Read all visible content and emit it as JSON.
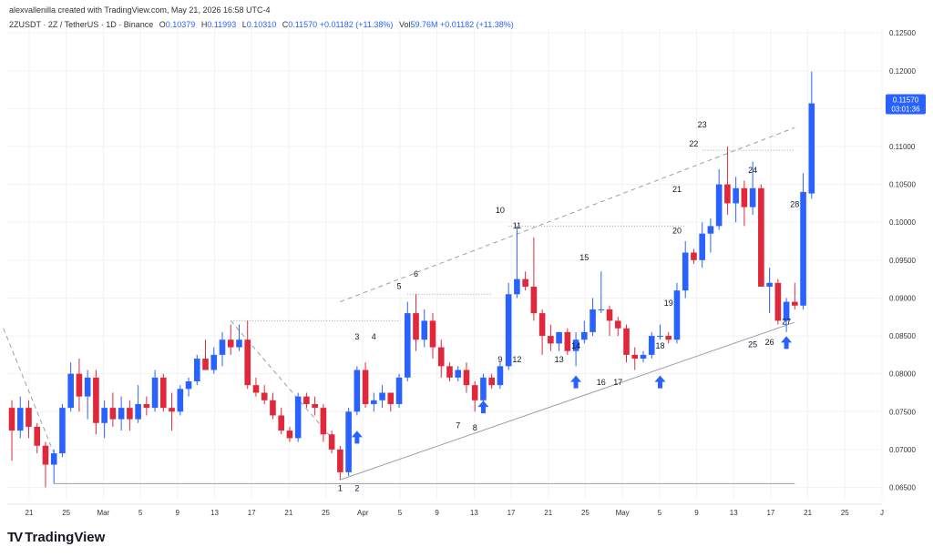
{
  "header": {
    "credit": "alexvallenilla created with TradingView.com, May 21, 2026 16:58 UTC-4",
    "symbol": "2ZUSDT · 2Z / TetherUS · 1D · Binance",
    "o_label": "O",
    "o_value": "0.10379",
    "h_label": "H",
    "h_value": "0.11993",
    "l_label": "L",
    "l_value": "0.10310",
    "c_label": "C",
    "c_value": "0.11570",
    "change": "+0.01182 (+11.38%)",
    "vol_label": "Vol",
    "vol_value": "59.76M",
    "vol_change": "+0.01182 (+11.38%)"
  },
  "price_tag": {
    "price": "0.11570",
    "countdown": "03:01:36"
  },
  "footer": {
    "brand": "TradingView"
  },
  "colors": {
    "up": "#2962ff",
    "down": "#e0283a",
    "grid": "#f1f3f6",
    "text": "#333333",
    "trendline": "#9aa0a6"
  },
  "chart_data": {
    "type": "candlestick",
    "ylim": [
      0.0635,
      0.1255
    ],
    "yticks": [
      0.065,
      0.07,
      0.075,
      0.08,
      0.085,
      0.09,
      0.095,
      0.1,
      0.105,
      0.11,
      0.115,
      0.12,
      0.125
    ],
    "ytick_labels": [
      "0.06500",
      "0.07000",
      "0.07500",
      "0.08000",
      "0.08500",
      "0.09000",
      "0.09500",
      "0.10000",
      "0.10500",
      "0.11000",
      "0.11500",
      "0.12000",
      "0.12500"
    ],
    "x_labels": [
      "21",
      "25",
      "Mar",
      "5",
      "9",
      "13",
      "17",
      "21",
      "25",
      "Apr",
      "5",
      "9",
      "13",
      "17",
      "21",
      "25",
      "May",
      "5",
      "9",
      "13",
      "17",
      "21",
      "25",
      "J"
    ],
    "candles": [
      {
        "o": 0.0755,
        "h": 0.0765,
        "l": 0.0685,
        "c": 0.0725
      },
      {
        "o": 0.0725,
        "h": 0.077,
        "l": 0.0715,
        "c": 0.0755
      },
      {
        "o": 0.0755,
        "h": 0.0765,
        "l": 0.0715,
        "c": 0.073
      },
      {
        "o": 0.073,
        "h": 0.0735,
        "l": 0.0695,
        "c": 0.0705
      },
      {
        "o": 0.0705,
        "h": 0.071,
        "l": 0.065,
        "c": 0.068
      },
      {
        "o": 0.068,
        "h": 0.07,
        "l": 0.0655,
        "c": 0.0695
      },
      {
        "o": 0.0695,
        "h": 0.076,
        "l": 0.069,
        "c": 0.0755
      },
      {
        "o": 0.0755,
        "h": 0.0815,
        "l": 0.075,
        "c": 0.08
      },
      {
        "o": 0.08,
        "h": 0.082,
        "l": 0.075,
        "c": 0.077
      },
      {
        "o": 0.077,
        "h": 0.0805,
        "l": 0.074,
        "c": 0.0795
      },
      {
        "o": 0.0795,
        "h": 0.0805,
        "l": 0.072,
        "c": 0.0735
      },
      {
        "o": 0.0735,
        "h": 0.0765,
        "l": 0.0715,
        "c": 0.0755
      },
      {
        "o": 0.0755,
        "h": 0.0775,
        "l": 0.073,
        "c": 0.074
      },
      {
        "o": 0.074,
        "h": 0.077,
        "l": 0.0725,
        "c": 0.0755
      },
      {
        "o": 0.0755,
        "h": 0.0765,
        "l": 0.0725,
        "c": 0.074
      },
      {
        "o": 0.074,
        "h": 0.0785,
        "l": 0.0735,
        "c": 0.076
      },
      {
        "o": 0.076,
        "h": 0.077,
        "l": 0.0745,
        "c": 0.0755
      },
      {
        "o": 0.0755,
        "h": 0.0805,
        "l": 0.075,
        "c": 0.0795
      },
      {
        "o": 0.0795,
        "h": 0.08,
        "l": 0.075,
        "c": 0.0755
      },
      {
        "o": 0.0755,
        "h": 0.0775,
        "l": 0.0725,
        "c": 0.075
      },
      {
        "o": 0.075,
        "h": 0.0785,
        "l": 0.0745,
        "c": 0.078
      },
      {
        "o": 0.078,
        "h": 0.0795,
        "l": 0.077,
        "c": 0.079
      },
      {
        "o": 0.079,
        "h": 0.0825,
        "l": 0.0785,
        "c": 0.082
      },
      {
        "o": 0.082,
        "h": 0.0845,
        "l": 0.0805,
        "c": 0.0805
      },
      {
        "o": 0.0805,
        "h": 0.0835,
        "l": 0.08,
        "c": 0.0825
      },
      {
        "o": 0.0825,
        "h": 0.0855,
        "l": 0.081,
        "c": 0.0845
      },
      {
        "o": 0.0845,
        "h": 0.0865,
        "l": 0.0825,
        "c": 0.0835
      },
      {
        "o": 0.0835,
        "h": 0.0865,
        "l": 0.083,
        "c": 0.0845
      },
      {
        "o": 0.0845,
        "h": 0.087,
        "l": 0.078,
        "c": 0.0785
      },
      {
        "o": 0.0785,
        "h": 0.0795,
        "l": 0.077,
        "c": 0.0775
      },
      {
        "o": 0.0775,
        "h": 0.0785,
        "l": 0.076,
        "c": 0.0765
      },
      {
        "o": 0.0765,
        "h": 0.0775,
        "l": 0.074,
        "c": 0.0745
      },
      {
        "o": 0.0745,
        "h": 0.0755,
        "l": 0.072,
        "c": 0.0725
      },
      {
        "o": 0.0725,
        "h": 0.073,
        "l": 0.071,
        "c": 0.0715
      },
      {
        "o": 0.0715,
        "h": 0.0775,
        "l": 0.071,
        "c": 0.077
      },
      {
        "o": 0.077,
        "h": 0.0775,
        "l": 0.0755,
        "c": 0.076
      },
      {
        "o": 0.076,
        "h": 0.077,
        "l": 0.0745,
        "c": 0.0755
      },
      {
        "o": 0.0755,
        "h": 0.076,
        "l": 0.071,
        "c": 0.072
      },
      {
        "o": 0.072,
        "h": 0.0725,
        "l": 0.0695,
        "c": 0.07
      },
      {
        "o": 0.07,
        "h": 0.0705,
        "l": 0.066,
        "c": 0.067
      },
      {
        "o": 0.067,
        "h": 0.0755,
        "l": 0.0665,
        "c": 0.075
      },
      {
        "o": 0.075,
        "h": 0.081,
        "l": 0.0745,
        "c": 0.0805
      },
      {
        "o": 0.0805,
        "h": 0.0815,
        "l": 0.0755,
        "c": 0.076
      },
      {
        "o": 0.076,
        "h": 0.0775,
        "l": 0.075,
        "c": 0.0765
      },
      {
        "o": 0.0765,
        "h": 0.0785,
        "l": 0.0755,
        "c": 0.0775
      },
      {
        "o": 0.0775,
        "h": 0.0775,
        "l": 0.075,
        "c": 0.076
      },
      {
        "o": 0.076,
        "h": 0.08,
        "l": 0.0755,
        "c": 0.0795
      },
      {
        "o": 0.0795,
        "h": 0.0895,
        "l": 0.079,
        "c": 0.088
      },
      {
        "o": 0.088,
        "h": 0.0905,
        "l": 0.083,
        "c": 0.0845
      },
      {
        "o": 0.0845,
        "h": 0.0885,
        "l": 0.0835,
        "c": 0.087
      },
      {
        "o": 0.087,
        "h": 0.088,
        "l": 0.082,
        "c": 0.0835
      },
      {
        "o": 0.0835,
        "h": 0.0845,
        "l": 0.0795,
        "c": 0.081
      },
      {
        "o": 0.081,
        "h": 0.0815,
        "l": 0.079,
        "c": 0.0795
      },
      {
        "o": 0.0795,
        "h": 0.081,
        "l": 0.079,
        "c": 0.0805
      },
      {
        "o": 0.0805,
        "h": 0.0815,
        "l": 0.0775,
        "c": 0.0785
      },
      {
        "o": 0.0785,
        "h": 0.079,
        "l": 0.075,
        "c": 0.0765
      },
      {
        "o": 0.0765,
        "h": 0.08,
        "l": 0.076,
        "c": 0.0795
      },
      {
        "o": 0.0795,
        "h": 0.08,
        "l": 0.078,
        "c": 0.0785
      },
      {
        "o": 0.0785,
        "h": 0.0815,
        "l": 0.078,
        "c": 0.081
      },
      {
        "o": 0.081,
        "h": 0.092,
        "l": 0.0805,
        "c": 0.0905
      },
      {
        "o": 0.0905,
        "h": 0.0995,
        "l": 0.09,
        "c": 0.0925
      },
      {
        "o": 0.0925,
        "h": 0.0935,
        "l": 0.091,
        "c": 0.0915
      },
      {
        "o": 0.0915,
        "h": 0.098,
        "l": 0.087,
        "c": 0.088
      },
      {
        "o": 0.088,
        "h": 0.0885,
        "l": 0.0825,
        "c": 0.085
      },
      {
        "o": 0.085,
        "h": 0.0865,
        "l": 0.083,
        "c": 0.084
      },
      {
        "o": 0.084,
        "h": 0.0855,
        "l": 0.083,
        "c": 0.0855
      },
      {
        "o": 0.0855,
        "h": 0.086,
        "l": 0.0825,
        "c": 0.083
      },
      {
        "o": 0.083,
        "h": 0.0855,
        "l": 0.081,
        "c": 0.0845
      },
      {
        "o": 0.0845,
        "h": 0.087,
        "l": 0.084,
        "c": 0.0855
      },
      {
        "o": 0.0855,
        "h": 0.09,
        "l": 0.085,
        "c": 0.0885
      },
      {
        "o": 0.0885,
        "h": 0.0935,
        "l": 0.088,
        "c": 0.0885
      },
      {
        "o": 0.0885,
        "h": 0.089,
        "l": 0.085,
        "c": 0.087
      },
      {
        "o": 0.087,
        "h": 0.0875,
        "l": 0.085,
        "c": 0.086
      },
      {
        "o": 0.086,
        "h": 0.0865,
        "l": 0.0815,
        "c": 0.0825
      },
      {
        "o": 0.0825,
        "h": 0.0835,
        "l": 0.0805,
        "c": 0.082
      },
      {
        "o": 0.082,
        "h": 0.083,
        "l": 0.0815,
        "c": 0.0825
      },
      {
        "o": 0.0825,
        "h": 0.0855,
        "l": 0.082,
        "c": 0.085
      },
      {
        "o": 0.085,
        "h": 0.0865,
        "l": 0.0845,
        "c": 0.085
      },
      {
        "o": 0.085,
        "h": 0.0855,
        "l": 0.084,
        "c": 0.0845
      },
      {
        "o": 0.0845,
        "h": 0.092,
        "l": 0.084,
        "c": 0.091
      },
      {
        "o": 0.091,
        "h": 0.0975,
        "l": 0.09,
        "c": 0.096
      },
      {
        "o": 0.096,
        "h": 0.0965,
        "l": 0.0945,
        "c": 0.095
      },
      {
        "o": 0.095,
        "h": 0.1,
        "l": 0.094,
        "c": 0.0985
      },
      {
        "o": 0.0985,
        "h": 0.1005,
        "l": 0.096,
        "c": 0.0995
      },
      {
        "o": 0.0995,
        "h": 0.107,
        "l": 0.099,
        "c": 0.105
      },
      {
        "o": 0.105,
        "h": 0.11,
        "l": 0.101,
        "c": 0.1025
      },
      {
        "o": 0.1025,
        "h": 0.106,
        "l": 0.1,
        "c": 0.1045
      },
      {
        "o": 0.1045,
        "h": 0.1055,
        "l": 0.0995,
        "c": 0.102
      },
      {
        "o": 0.102,
        "h": 0.108,
        "l": 0.101,
        "c": 0.1045
      },
      {
        "o": 0.1045,
        "h": 0.105,
        "l": 0.092,
        "c": 0.0915
      },
      {
        "o": 0.0915,
        "h": 0.094,
        "l": 0.088,
        "c": 0.092
      },
      {
        "o": 0.092,
        "h": 0.0925,
        "l": 0.0865,
        "c": 0.087
      },
      {
        "o": 0.087,
        "h": 0.09,
        "l": 0.0855,
        "c": 0.0895
      },
      {
        "o": 0.0895,
        "h": 0.092,
        "l": 0.0885,
        "c": 0.089
      },
      {
        "o": 0.089,
        "h": 0.1065,
        "l": 0.0885,
        "c": 0.104
      },
      {
        "o": 0.1038,
        "h": 0.1199,
        "l": 0.1031,
        "c": 0.1157
      }
    ],
    "wave_labels": [
      {
        "text": "1",
        "i": 39,
        "price": 0.0645
      },
      {
        "text": "2",
        "i": 41,
        "price": 0.0645
      },
      {
        "text": "3",
        "i": 41,
        "price": 0.0845
      },
      {
        "text": "4",
        "i": 43,
        "price": 0.0845
      },
      {
        "text": "5",
        "i": 46,
        "price": 0.0912
      },
      {
        "text": "6",
        "i": 48,
        "price": 0.0928
      },
      {
        "text": "7",
        "i": 53,
        "price": 0.0728
      },
      {
        "text": "8",
        "i": 55,
        "price": 0.0725
      },
      {
        "text": "9",
        "i": 58,
        "price": 0.0815
      },
      {
        "text": "10",
        "i": 58,
        "price": 0.1012
      },
      {
        "text": "11",
        "i": 60,
        "price": 0.0992
      },
      {
        "text": "12",
        "i": 60,
        "price": 0.0815
      },
      {
        "text": "13",
        "i": 65,
        "price": 0.0815
      },
      {
        "text": "14",
        "i": 67,
        "price": 0.0833
      },
      {
        "text": "15",
        "i": 68,
        "price": 0.095
      },
      {
        "text": "16",
        "i": 70,
        "price": 0.0785
      },
      {
        "text": "17",
        "i": 72,
        "price": 0.0785
      },
      {
        "text": "18",
        "i": 77,
        "price": 0.0833
      },
      {
        "text": "19",
        "i": 78,
        "price": 0.089
      },
      {
        "text": "20",
        "i": 79,
        "price": 0.0985
      },
      {
        "text": "21",
        "i": 79,
        "price": 0.104
      },
      {
        "text": "22",
        "i": 81,
        "price": 0.11
      },
      {
        "text": "23",
        "i": 82,
        "price": 0.1125
      },
      {
        "text": "24",
        "i": 88,
        "price": 0.1065
      },
      {
        "text": "25",
        "i": 88,
        "price": 0.0835
      },
      {
        "text": "26",
        "i": 90,
        "price": 0.0838
      },
      {
        "text": "27",
        "i": 92,
        "price": 0.0865
      },
      {
        "text": "28",
        "i": 93,
        "price": 0.102
      }
    ],
    "arrows": [
      {
        "i": 41,
        "price": 0.0715
      },
      {
        "i": 56,
        "price": 0.0755
      },
      {
        "i": 67,
        "price": 0.0788
      },
      {
        "i": 77,
        "price": 0.0788
      },
      {
        "i": 92,
        "price": 0.084
      }
    ],
    "lines": [
      {
        "style": "solid",
        "i1": 5,
        "p1": 0.0655,
        "i2": 93,
        "p2": 0.0655
      },
      {
        "style": "solid",
        "i1": 39,
        "p1": 0.066,
        "i2": 93,
        "p2": 0.0868
      },
      {
        "style": "dashed",
        "i1": 39,
        "p1": 0.0895,
        "i2": 93,
        "p2": 0.1125
      },
      {
        "style": "dotted",
        "i1": 26,
        "p1": 0.087,
        "i2": 46,
        "p2": 0.087
      },
      {
        "style": "dotted",
        "i1": 47,
        "p1": 0.0905,
        "i2": 57,
        "p2": 0.0905
      },
      {
        "style": "dotted",
        "i1": 59,
        "p1": 0.0995,
        "i2": 80,
        "p2": 0.0995
      },
      {
        "style": "dotted",
        "i1": 82,
        "p1": 0.1095,
        "i2": 93,
        "p2": 0.1095
      },
      {
        "style": "dashed",
        "i1": -1,
        "p1": 0.086,
        "i2": 5,
        "p2": 0.0695
      },
      {
        "style": "dashed",
        "i1": 26,
        "p1": 0.087,
        "i2": 38,
        "p2": 0.0715
      }
    ]
  }
}
